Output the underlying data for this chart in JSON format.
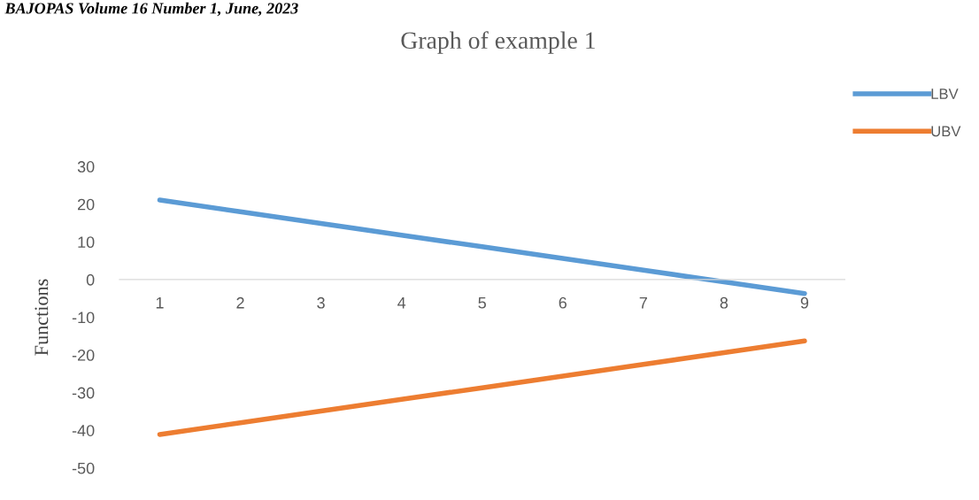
{
  "chart_data": {
    "type": "line",
    "title": "Graph of example 1",
    "ylabel": "Functions",
    "annotations": [
      "BAJOPAS Volume 16 Number 1, June, 2023"
    ],
    "categories": [
      "1",
      "2",
      "3",
      "4",
      "5",
      "6",
      "7",
      "8",
      "9"
    ],
    "series": [
      {
        "name": "LBV",
        "color": "#5b9bd5",
        "values": [
          21.1,
          18,
          14.9,
          11.8,
          8.7,
          5.6,
          2.5,
          -0.6,
          -3.7
        ]
      },
      {
        "name": "UBV",
        "color": "#ed7d31",
        "values": [
          -41.1,
          -38,
          -34.9,
          -31.8,
          -28.7,
          -25.6,
          -22.5,
          -19.4,
          -16.3
        ]
      }
    ],
    "ylim": [
      -50,
      30
    ],
    "yticks": [
      -50,
      -40,
      -30,
      -20,
      -10,
      0,
      10,
      20,
      30
    ],
    "grid": false,
    "legend": "top right",
    "marker": "none",
    "line_style": "solid"
  }
}
